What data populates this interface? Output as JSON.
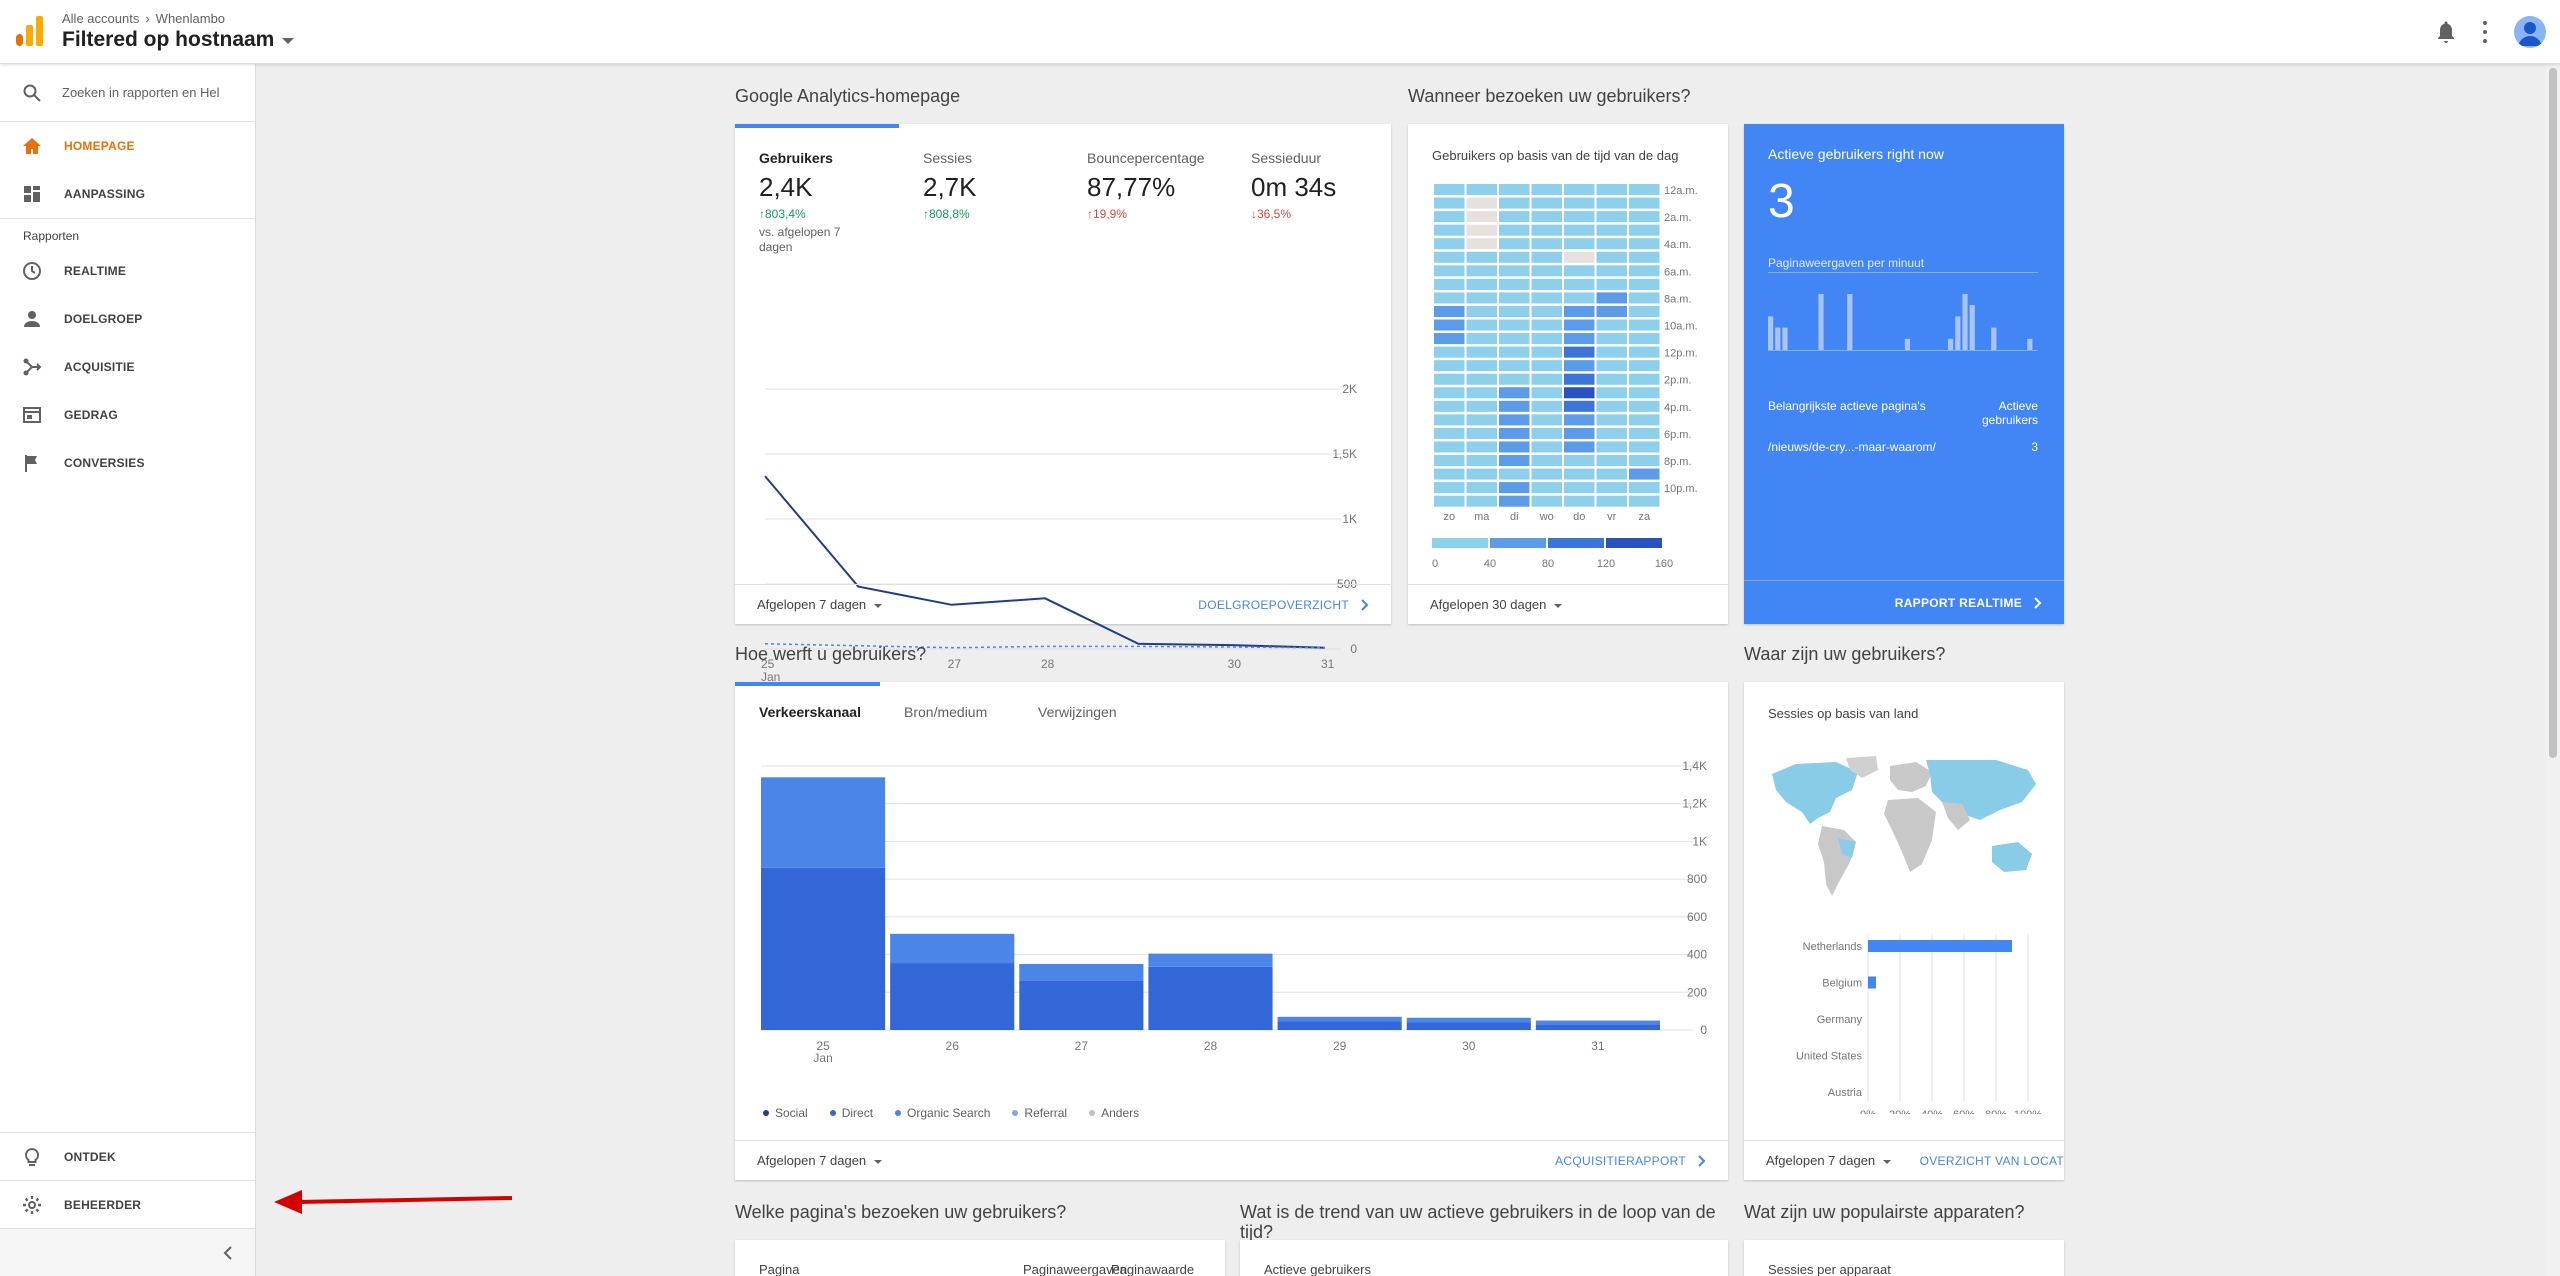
{
  "header": {
    "breadcrumb": [
      "Alle accounts",
      "Whenlambo"
    ],
    "view_name": "Filtered op hostnaam"
  },
  "sidebar": {
    "search_placeholder": "Zoeken in rapporten en Hel",
    "top_items": [
      {
        "label": "HOMEPAGE",
        "icon": "home-icon",
        "active": true
      },
      {
        "label": "AANPASSING",
        "icon": "dashboard-grid-icon"
      }
    ],
    "reports_label": "Rapporten",
    "report_items": [
      {
        "label": "REALTIME",
        "icon": "clock-icon"
      },
      {
        "label": "DOELGROEP",
        "icon": "person-icon"
      },
      {
        "label": "ACQUISITIE",
        "icon": "acquisition-icon"
      },
      {
        "label": "GEDRAG",
        "icon": "behavior-icon"
      },
      {
        "label": "CONVERSIES",
        "icon": "flag-icon"
      }
    ],
    "bottom_items": [
      {
        "label": "ONTDEK",
        "icon": "lightbulb-icon"
      },
      {
        "label": "BEHEERDER",
        "icon": "gear-icon"
      }
    ]
  },
  "homepage_card": {
    "title": "Google Analytics-homepage",
    "kpis": [
      {
        "label": "Gebruikers",
        "value": "2,4K",
        "delta": "803,4%",
        "direction": "up",
        "note": "vs. afgelopen 7 dagen"
      },
      {
        "label": "Sessies",
        "value": "2,7K",
        "delta": "808,8%",
        "direction": "up"
      },
      {
        "label": "Bouncepercentage",
        "value": "87,77%",
        "delta": "19,9%",
        "direction": "up-bad"
      },
      {
        "label": "Sessieduur",
        "value": "0m 34s",
        "delta": "36,5%",
        "direction": "down"
      }
    ],
    "footer_range": "Afgelopen 7 dagen",
    "footer_link": "DOELGROEPOVERZICHT"
  },
  "time_card": {
    "section_title": "Wanneer bezoeken uw gebruikers?",
    "subtitle": "Gebruikers op basis van de tijd van de dag",
    "days": [
      "zo",
      "ma",
      "di",
      "wo",
      "do",
      "vr",
      "za"
    ],
    "hour_labels": [
      "12a.m.",
      "2a.m.",
      "4a.m.",
      "6a.m.",
      "8a.m.",
      "10a.m.",
      "12p.m.",
      "2p.m.",
      "4p.m.",
      "6p.m.",
      "8p.m.",
      "10p.m."
    ],
    "scale_labels": [
      "0",
      "40",
      "80",
      "120",
      "160"
    ],
    "footer_range": "Afgelopen 30 dagen"
  },
  "realtime_card": {
    "title": "Actieve gebruikers right now",
    "value": "3",
    "pageviews_label": "Paginaweergaven per minuut",
    "pages_label": "Belangrijkste actieve pagina's",
    "users_label": "Actieve gebruikers",
    "page_path": "/nieuws/de-cry...-maar-waarom/",
    "page_users": "3",
    "footer_link": "RAPPORT REALTIME"
  },
  "acquisition_card": {
    "section_title": "Hoe werft u gebruikers?",
    "tabs": [
      "Verkeerskanaal",
      "Bron/medium",
      "Verwijzingen"
    ],
    "footer_range": "Afgelopen 7 dagen",
    "footer_link": "ACQUISITIERAPPORT"
  },
  "geo_card": {
    "section_title": "Waar zijn uw gebruikers?",
    "subtitle": "Sessies op basis van land",
    "footer_range": "Afgelopen 7 dagen",
    "footer_link": "OVERZICHT VAN LOCAT"
  },
  "bottom_row": {
    "pages_title": "Welke pagina's bezoeken uw gebruikers?",
    "pages_col1": "Pagina",
    "pages_col2": "Paginaweergaven",
    "pages_col3": "Paginawaarde",
    "trend_title": "Wat is de trend van uw actieve gebruikers in de loop van de tijd?",
    "trend_header": "Actieve gebruikers",
    "devices_title": "Wat zijn uw populairste apparaten?",
    "devices_header": "Sessies per apparaat"
  },
  "colors": {
    "accent": "#4285f4",
    "active_nav": "#e8710a",
    "series_dark": "#3366d6",
    "series_light": "#4a86e8",
    "annotation_arrow": "#d50000"
  },
  "chart_data": [
    {
      "type": "line",
      "x": [
        "25 Jan",
        "26",
        "27",
        "28",
        "29",
        "30",
        "31"
      ],
      "series": [
        {
          "name": "Gebruikers",
          "values": [
            1330,
            480,
            340,
            390,
            40,
            30,
            10
          ]
        },
        {
          "name": "vs. afgelopen 7 dagen",
          "values": [
            40,
            25,
            10,
            20,
            20,
            15,
            10
          ]
        }
      ],
      "y_ticks": [
        "0",
        "500",
        "1K",
        "1,5K",
        "2K"
      ],
      "x_tick_labels": [
        "25",
        "Jan",
        "27",
        "28",
        "30",
        "31"
      ],
      "ylim": [
        0,
        2000
      ]
    },
    {
      "type": "heatmap",
      "title": "Gebruikers op basis van de tijd van de dag",
      "columns": [
        "zo",
        "ma",
        "di",
        "wo",
        "do",
        "vr",
        "za"
      ],
      "rows": 24,
      "values": [
        [
          40,
          40,
          40,
          40,
          40,
          40,
          40
        ],
        [
          40,
          20,
          40,
          40,
          40,
          40,
          40
        ],
        [
          40,
          20,
          40,
          40,
          40,
          40,
          40
        ],
        [
          40,
          20,
          40,
          40,
          40,
          40,
          40
        ],
        [
          40,
          20,
          40,
          40,
          40,
          40,
          40
        ],
        [
          40,
          40,
          40,
          40,
          20,
          40,
          40
        ],
        [
          40,
          40,
          40,
          40,
          40,
          40,
          40
        ],
        [
          40,
          40,
          40,
          40,
          40,
          40,
          40
        ],
        [
          40,
          40,
          40,
          40,
          40,
          80,
          40
        ],
        [
          80,
          40,
          40,
          40,
          80,
          80,
          40
        ],
        [
          80,
          40,
          40,
          40,
          80,
          40,
          40
        ],
        [
          80,
          40,
          40,
          40,
          80,
          40,
          40
        ],
        [
          40,
          40,
          40,
          40,
          120,
          40,
          40
        ],
        [
          40,
          40,
          40,
          40,
          80,
          40,
          40
        ],
        [
          40,
          40,
          40,
          40,
          120,
          40,
          40
        ],
        [
          40,
          40,
          80,
          40,
          160,
          40,
          40
        ],
        [
          40,
          40,
          80,
          40,
          120,
          40,
          40
        ],
        [
          40,
          40,
          80,
          40,
          80,
          40,
          40
        ],
        [
          40,
          40,
          80,
          40,
          80,
          40,
          40
        ],
        [
          40,
          40,
          80,
          40,
          80,
          40,
          40
        ],
        [
          40,
          40,
          80,
          40,
          40,
          40,
          40
        ],
        [
          40,
          40,
          40,
          40,
          40,
          40,
          80
        ],
        [
          40,
          40,
          80,
          40,
          40,
          40,
          40
        ],
        [
          40,
          40,
          80,
          40,
          40,
          40,
          40
        ]
      ],
      "scale": [
        "0",
        "40",
        "80",
        "120",
        "160"
      ]
    },
    {
      "type": "bar",
      "title": "Paginaweergaven per minuut",
      "values": [
        3,
        2,
        2,
        0,
        0,
        0,
        0,
        5,
        0,
        0,
        0,
        5,
        0,
        0,
        0,
        0,
        0,
        0,
        0,
        1,
        0,
        0,
        0,
        0,
        0,
        1,
        3,
        5,
        4,
        0,
        0,
        2,
        0,
        0,
        0,
        0,
        1
      ]
    },
    {
      "type": "bar",
      "stacked": true,
      "categories": [
        "25 Jan",
        "26",
        "27",
        "28",
        "29",
        "30",
        "31"
      ],
      "series": [
        {
          "name": "Social",
          "values": [
            0,
            0,
            0,
            0,
            0,
            0,
            0
          ]
        },
        {
          "name": "Direct",
          "values": [
            860,
            355,
            260,
            335,
            45,
            40,
            30
          ]
        },
        {
          "name": "Organic Search",
          "values": [
            480,
            155,
            90,
            70,
            25,
            25,
            20
          ]
        },
        {
          "name": "Referral",
          "values": [
            0,
            0,
            0,
            0,
            0,
            0,
            0
          ]
        },
        {
          "name": "Anders",
          "values": [
            0,
            0,
            0,
            0,
            0,
            0,
            0
          ]
        }
      ],
      "y_ticks": [
        "0",
        "200",
        "400",
        "600",
        "800",
        "1K",
        "1,2K",
        "1,4K"
      ],
      "ylim": [
        0,
        1400
      ]
    },
    {
      "type": "bar",
      "orientation": "horizontal",
      "categories": [
        "Netherlands",
        "Belgium",
        "Germany",
        "United States",
        "Austria"
      ],
      "values": [
        90,
        5,
        0,
        0,
        0
      ],
      "x_ticks": [
        "0%",
        "20%",
        "40%",
        "60%",
        "80%",
        "100%"
      ]
    }
  ]
}
